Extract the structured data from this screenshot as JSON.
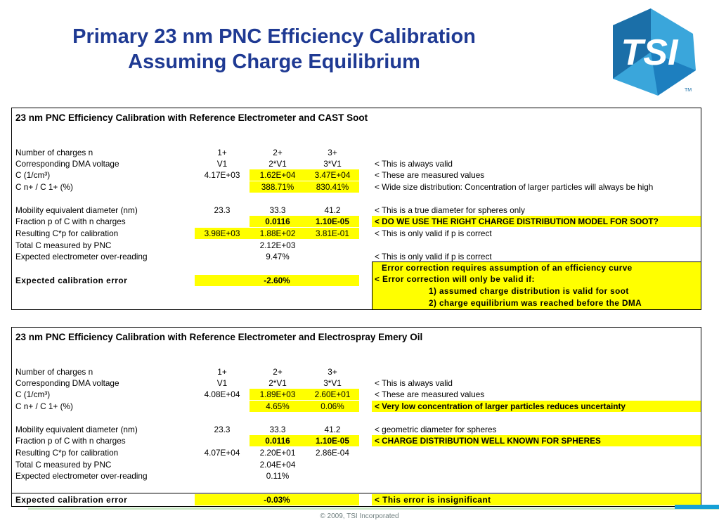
{
  "title": {
    "line1": "Primary 23 nm PNC Efficiency Calibration",
    "line2": "Assuming Charge Equilibrium"
  },
  "logo": {
    "text": "TSI",
    "tm": "TM",
    "colors": {
      "dark": "#1b6fa8",
      "light": "#3aa6db"
    }
  },
  "panel1": {
    "header": "23 nm PNC Efficiency Calibration with Reference Electrometer and CAST Soot",
    "rows": [
      {
        "label": "Number of charges n",
        "v1": "1+",
        "v2": "2+",
        "v3": "3+",
        "note": ""
      },
      {
        "label": "Corresponding DMA voltage",
        "v1": "V1",
        "v2": "2*V1",
        "v3": "3*V1",
        "note": "< This is always valid"
      },
      {
        "label": "C (1/cm³)",
        "v1": "4.17E+03",
        "v2": "1.62E+04",
        "v3": "3.47E+04",
        "note": "< These are measured values"
      },
      {
        "label": "C n+ / C 1+ (%)",
        "v1": "",
        "v2": "388.71%",
        "v3": "830.41%",
        "note": "< Wide size distribution: Concentration of larger particles will always be high"
      },
      {
        "label": "Mobility equivalent diameter (nm)",
        "v1": "23.3",
        "v2": "33.3",
        "v3": "41.2",
        "note": "< This is a true diameter for spheres only"
      },
      {
        "label": "Fraction p of C with n charges",
        "v1": "",
        "v2": "0.0116",
        "v3": "1.10E-05",
        "note": "< DO WE USE THE RIGHT CHARGE DISTRIBUTION MODEL FOR SOOT?"
      },
      {
        "label": "Resulting C*p for calibration",
        "v1": "3.98E+03",
        "v2": "1.88E+02",
        "v3": "3.81E-01",
        "note": "< This is only valid if p is correct"
      },
      {
        "label": "Total C measured by PNC",
        "v1": "",
        "v2": "2.12E+03",
        "v3": "",
        "note": ""
      },
      {
        "label": "Expected electrometer over-reading",
        "v1": "",
        "v2": "9.47%",
        "v3": "",
        "note": "< This is only valid if p is correct"
      }
    ],
    "error": {
      "label": "Expected calibration error",
      "value": "-2.60%",
      "lines": [
        "Error correction requires assumption of an efficiency curve",
        "< Error correction will only be valid if:",
        "1) assumed charge distribution is valid for soot",
        "2) charge equilibrium was reached before the DMA"
      ]
    }
  },
  "panel2": {
    "header": "23 nm PNC Efficiency Calibration with Reference Electrometer and Electrospray Emery Oil",
    "rows": [
      {
        "label": "Number of charges n",
        "v1": "1+",
        "v2": "2+",
        "v3": "3+",
        "note": ""
      },
      {
        "label": "Corresponding DMA voltage",
        "v1": "V1",
        "v2": "2*V1",
        "v3": "3*V1",
        "note": "< This is always valid"
      },
      {
        "label": "C (1/cm³)",
        "v1": "4.08E+04",
        "v2": "1.89E+03",
        "v3": "2.60E+01",
        "note": "< These are measured values"
      },
      {
        "label": "C n+ / C 1+ (%)",
        "v1": "",
        "v2": "4.65%",
        "v3": "0.06%",
        "note": "< Very low concentration of larger particles reduces uncertainty"
      },
      {
        "label": "Mobility equivalent diameter (nm)",
        "v1": "23.3",
        "v2": "33.3",
        "v3": "41.2",
        "note": "< geometric diameter for spheres"
      },
      {
        "label": "Fraction p of C with n charges",
        "v1": "",
        "v2": "0.0116",
        "v3": "1.10E-05",
        "note": "< CHARGE DISTRIBUTION WELL KNOWN FOR SPHERES"
      },
      {
        "label": "Resulting C*p for calibration",
        "v1": "4.07E+04",
        "v2": "2.20E+01",
        "v3": "2.86E-04",
        "note": ""
      },
      {
        "label": "Total C measured by PNC",
        "v1": "",
        "v2": "2.04E+04",
        "v3": "",
        "note": ""
      },
      {
        "label": "Expected electrometer over-reading",
        "v1": "",
        "v2": "0.11%",
        "v3": "",
        "note": ""
      }
    ],
    "error": {
      "label": "Expected calibration error",
      "value": "-0.03%",
      "note": "< This error is insignificant"
    }
  },
  "footer": "© 2009, TSI Incorporated"
}
